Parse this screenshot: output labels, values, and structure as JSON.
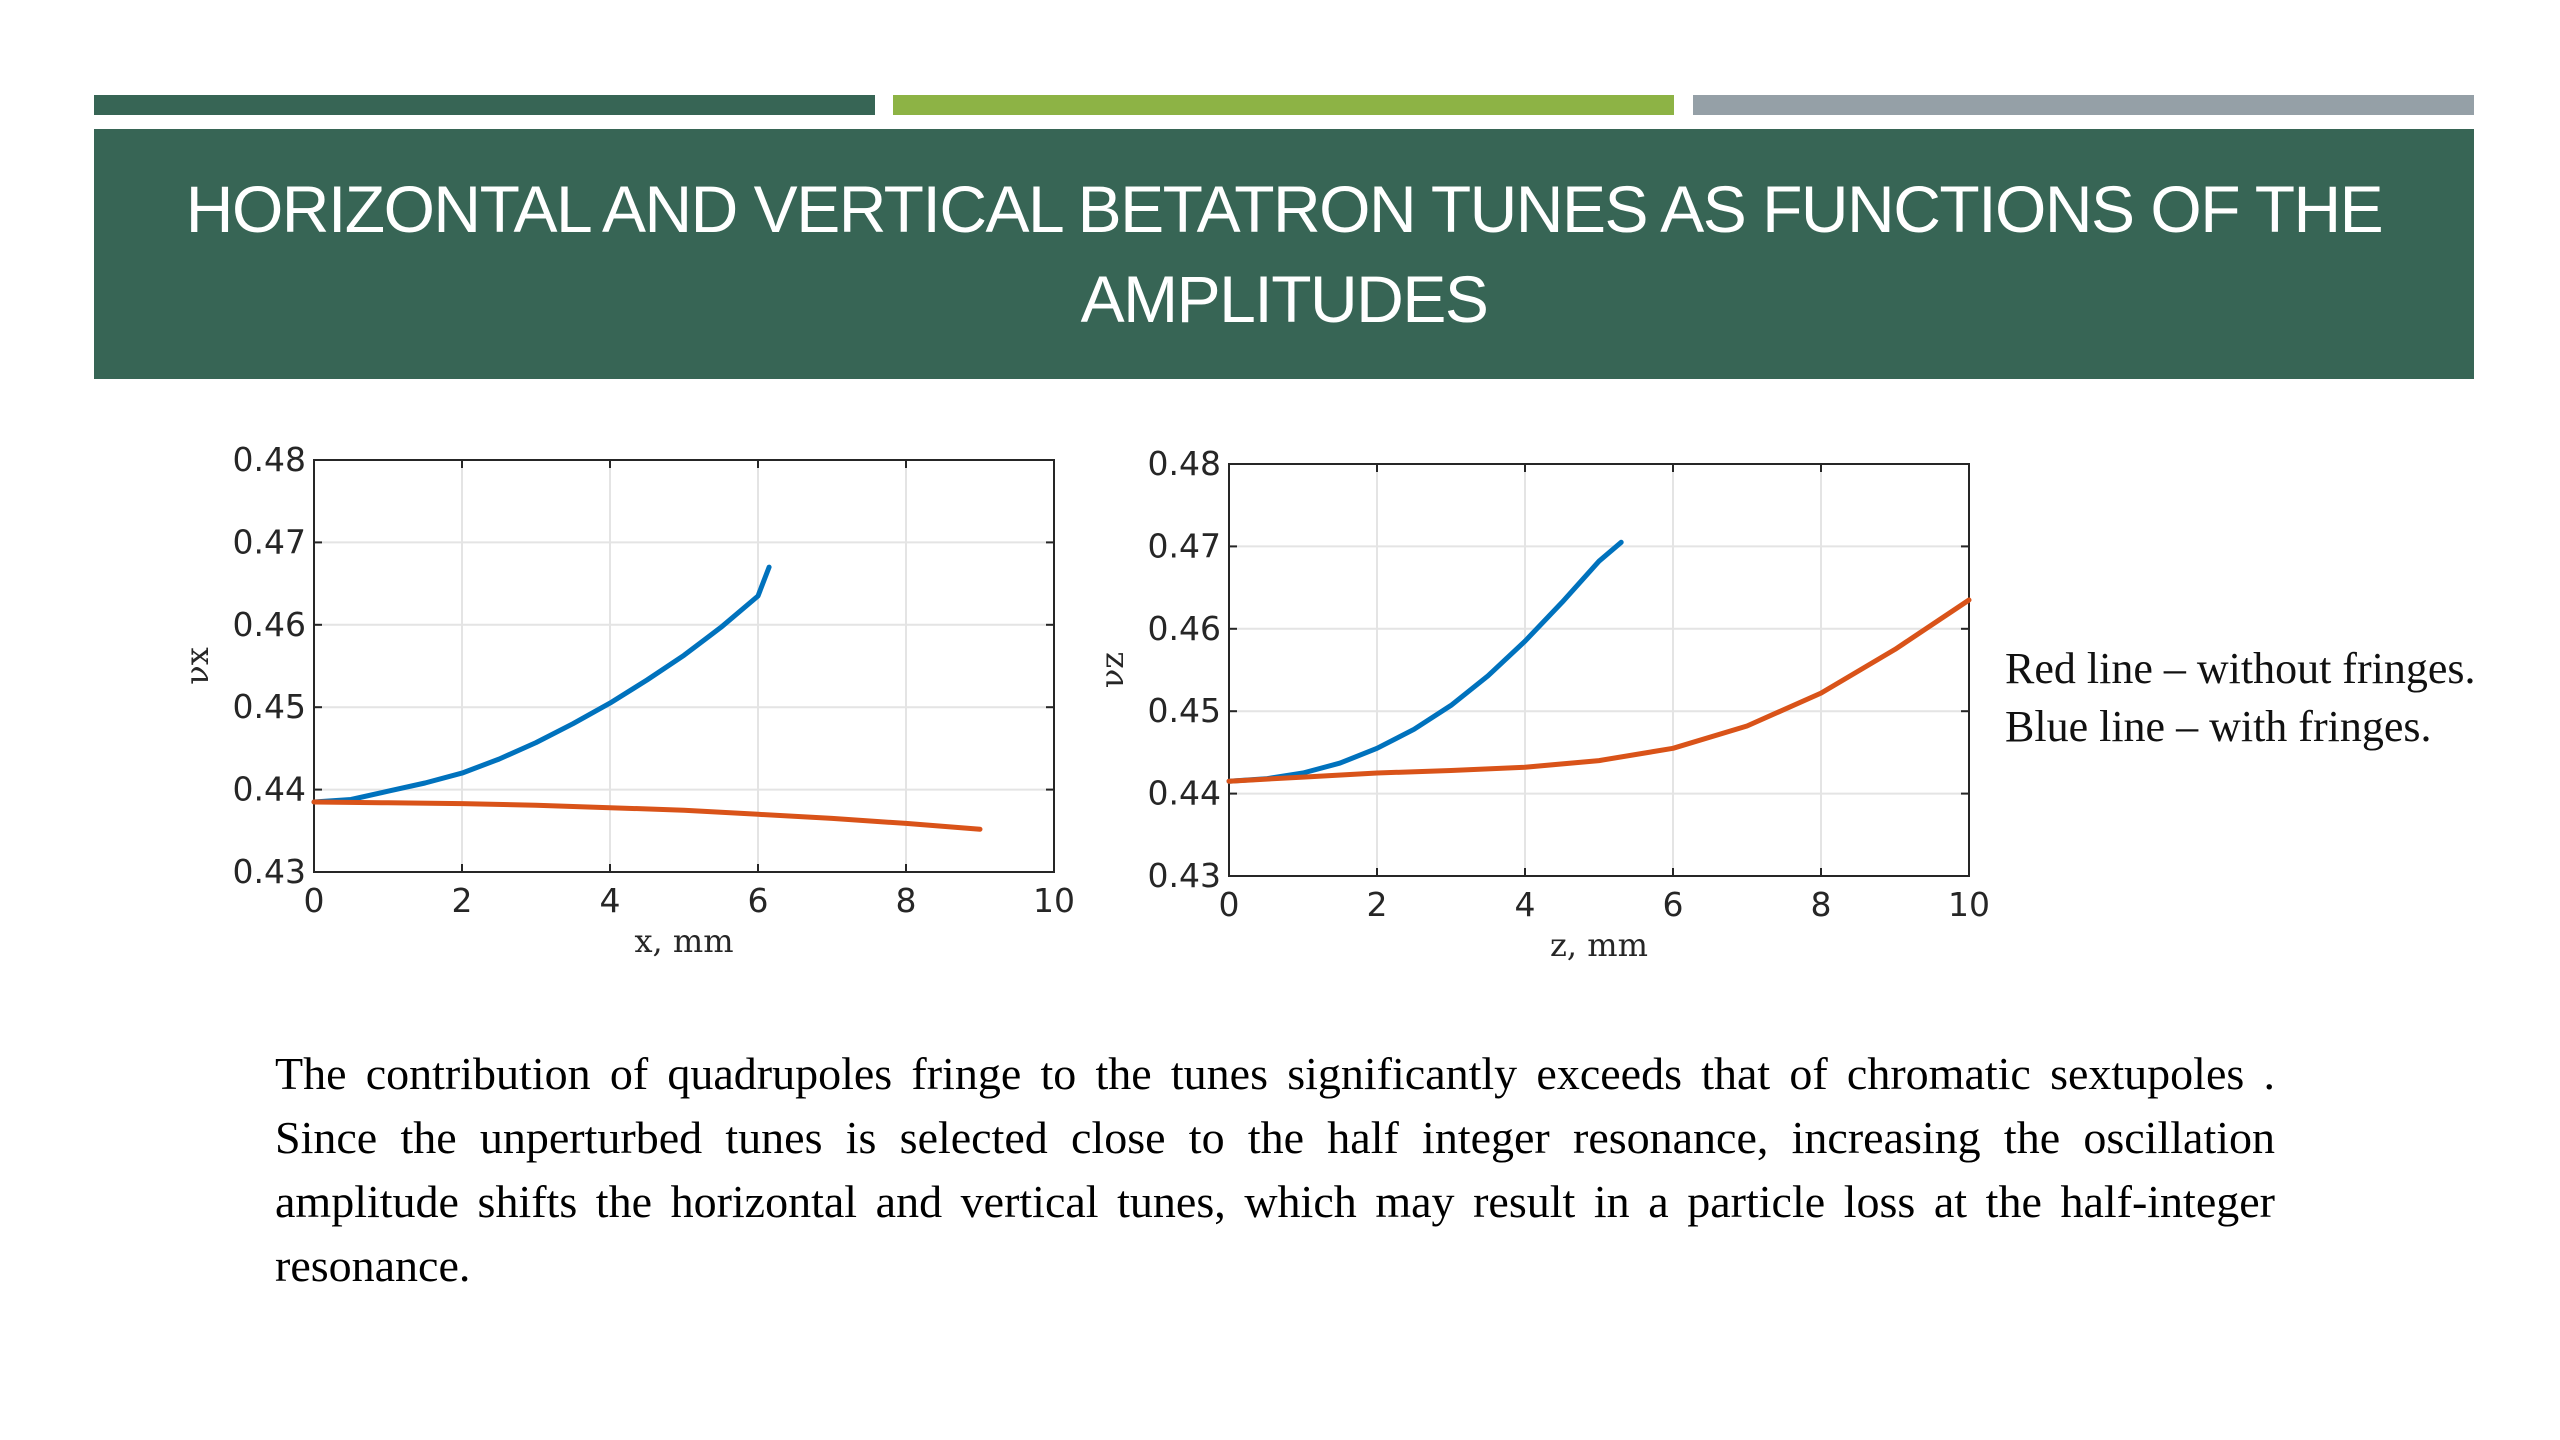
{
  "slide": {
    "title": "HORIZONTAL AND VERTICAL BETATRON TUNES AS FUNCTIONS OF THE AMPLITUDES",
    "legend": {
      "red": "Red line – without fringes.",
      "blue": "Blue line – with fringes."
    },
    "body": "The contribution of quadrupoles fringe to the tunes significantly exceeds that of chromatic sextupoles . Since the unperturbed tunes is selected close to the half integer resonance, increasing the oscillation amplitude shifts the horizontal and vertical tunes, which may result in a particle loss at the half-integer resonance."
  },
  "colors": {
    "header": "#376555",
    "bar1": "#376555",
    "bar2": "#8db345",
    "bar3": "#95a0a7",
    "blue_line": "#0072bd",
    "red_line": "#d95319"
  },
  "chart_data": [
    {
      "type": "line",
      "xlabel": "x, mm",
      "ylabel": "νx",
      "xlim": [
        0,
        10
      ],
      "ylim": [
        0.43,
        0.48
      ],
      "xticks": [
        "0",
        "2",
        "4",
        "6",
        "8",
        "10"
      ],
      "yticks": [
        "0.43",
        "0.44",
        "0.45",
        "0.46",
        "0.47",
        "0.48"
      ],
      "grid": true,
      "series": [
        {
          "color": "blue",
          "x": [
            0,
            0.5,
            1,
            1.5,
            2,
            2.5,
            3,
            3.5,
            4,
            4.5,
            5,
            5.5,
            6,
            6.15
          ],
          "y": [
            0.4385,
            0.4388,
            0.4398,
            0.4408,
            0.442,
            0.4437,
            0.4457,
            0.448,
            0.4505,
            0.4533,
            0.4563,
            0.4597,
            0.4635,
            0.467
          ]
        },
        {
          "color": "red",
          "x": [
            0,
            1,
            2,
            3,
            4,
            5,
            6,
            7,
            8,
            9
          ],
          "y": [
            0.4385,
            0.4384,
            0.4383,
            0.4381,
            0.4378,
            0.4375,
            0.437,
            0.4365,
            0.4359,
            0.4352
          ]
        }
      ]
    },
    {
      "type": "line",
      "xlabel": "z, mm",
      "ylabel": "νz",
      "xlim": [
        0,
        10
      ],
      "ylim": [
        0.43,
        0.48
      ],
      "xticks": [
        "0",
        "2",
        "4",
        "6",
        "8",
        "10"
      ],
      "yticks": [
        "0.43",
        "0.44",
        "0.45",
        "0.46",
        "0.47",
        "0.48"
      ],
      "grid": true,
      "series": [
        {
          "color": "blue",
          "x": [
            0,
            0.5,
            1,
            1.5,
            2,
            2.5,
            3,
            3.5,
            4,
            4.5,
            5,
            5.3
          ],
          "y": [
            0.4415,
            0.4418,
            0.4425,
            0.4437,
            0.4455,
            0.4478,
            0.4507,
            0.4543,
            0.4585,
            0.4632,
            0.4682,
            0.4705
          ]
        },
        {
          "color": "red",
          "x": [
            0,
            1,
            2,
            3,
            4,
            5,
            6,
            7,
            8,
            9,
            10
          ],
          "y": [
            0.4415,
            0.442,
            0.4425,
            0.4428,
            0.4432,
            0.444,
            0.4455,
            0.4482,
            0.4522,
            0.4575,
            0.4635
          ]
        }
      ]
    }
  ]
}
